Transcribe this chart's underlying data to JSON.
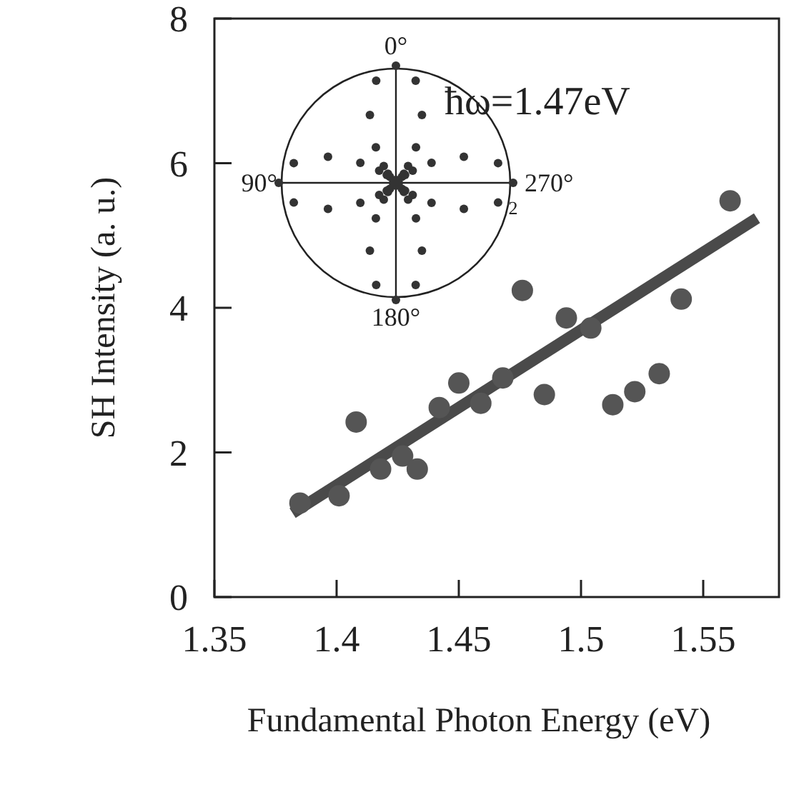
{
  "chart_data": [
    {
      "type": "scatter",
      "xlabel": "Fundamental Photon Energy (eV)",
      "ylabel": "SH Intensity (a. u.)",
      "xlim": [
        1.35,
        1.581
      ],
      "ylim": [
        0,
        8
      ],
      "xticks": [
        1.35,
        1.4,
        1.45,
        1.5,
        1.55
      ],
      "yticks": [
        0,
        2,
        4,
        6,
        8
      ],
      "grid": false,
      "series": [
        {
          "type": "scatter",
          "color": "#555555",
          "marker": "circle",
          "x": [
            1.385,
            1.401,
            1.408,
            1.418,
            1.427,
            1.433,
            1.442,
            1.45,
            1.459,
            1.468,
            1.476,
            1.485,
            1.494,
            1.504,
            1.513,
            1.522,
            1.532,
            1.541,
            1.561
          ],
          "values": [
            1.3,
            1.4,
            2.42,
            1.77,
            1.95,
            1.77,
            2.62,
            2.96,
            2.68,
            3.03,
            4.24,
            2.8,
            3.86,
            3.72,
            2.66,
            2.84,
            3.09,
            4.12,
            5.48
          ]
        },
        {
          "type": "line",
          "color": "#4a4a4a",
          "line_style": "solid",
          "x": [
            1.382,
            1.572
          ],
          "values": [
            1.16,
            5.24
          ]
        }
      ]
    },
    {
      "type": "other",
      "annotations": [
        "0°",
        "90°",
        "180°",
        "270°",
        "ħω=1.47eV",
        "2"
      ]
    }
  ]
}
